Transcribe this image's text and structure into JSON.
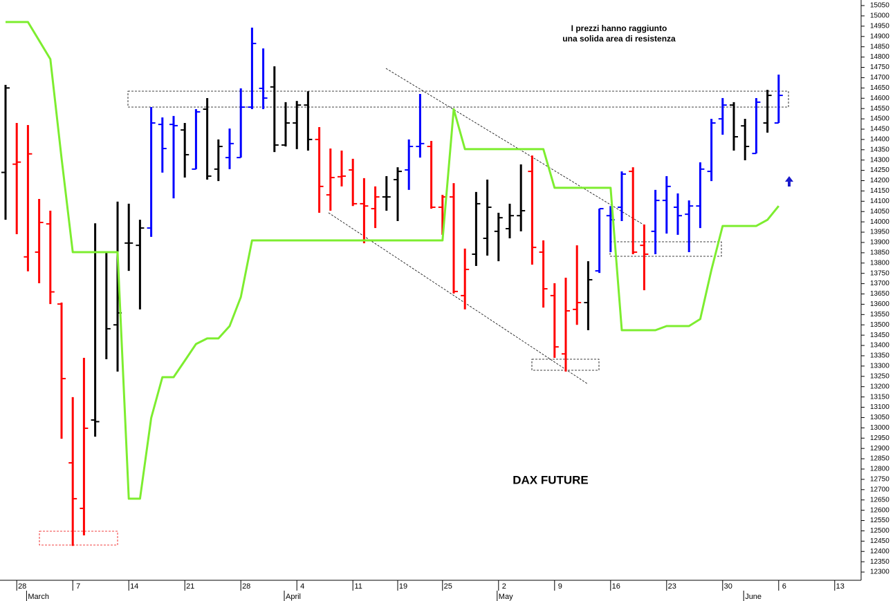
{
  "chart_data": {
    "type": "ohlc",
    "title": "DAX FUTURE",
    "annotation": [
      "I prezzi hanno raggiunto",
      "una solida area di resistenza"
    ],
    "categories": [
      null,
      "28",
      null,
      null,
      null,
      null,
      "7",
      null,
      null,
      null,
      null,
      "14",
      null,
      null,
      null,
      null,
      "21",
      null,
      null,
      null,
      null,
      "28",
      null,
      null,
      null,
      null,
      "4",
      null,
      null,
      null,
      null,
      "11",
      null,
      null,
      null,
      "19",
      null,
      null,
      null,
      "25",
      null,
      null,
      null,
      null,
      "2",
      null,
      null,
      null,
      null,
      "9",
      null,
      null,
      null,
      null,
      "16",
      null,
      null,
      null,
      null,
      "23",
      null,
      null,
      null,
      null,
      "30",
      null,
      null,
      null,
      null,
      "6",
      null,
      null,
      null,
      null,
      "13",
      null
    ],
    "months": [
      null,
      null,
      "March",
      null,
      null,
      null,
      null,
      null,
      null,
      null,
      null,
      null,
      null,
      null,
      null,
      null,
      null,
      null,
      null,
      null,
      null,
      null,
      null,
      null,
      null,
      "April",
      null,
      null,
      null,
      null,
      null,
      null,
      null,
      null,
      null,
      null,
      null,
      null,
      null,
      null,
      null,
      null,
      null,
      null,
      "May",
      null,
      null,
      null,
      null,
      null,
      null,
      null,
      null,
      null,
      null,
      null,
      null,
      null,
      null,
      null,
      null,
      null,
      null,
      null,
      null,
      null,
      "June",
      null,
      null,
      null,
      null,
      null,
      null,
      null,
      null,
      null
    ],
    "open": [
      14240,
      14280,
      13830,
      13853,
      13990,
      13601,
      12830,
      12609,
      13038,
      13853,
      13500,
      13897,
      13886,
      13970,
      14473,
      14473,
      14446,
      14256,
      14547,
      14256,
      14312,
      14312,
      14557,
      14648,
      14655,
      14373,
      14480,
      14567,
      14400,
      14131,
      14219,
      14252,
      14088,
      14064,
      14121,
      14205,
      14252,
      14366,
      14366,
      14071,
      14121,
      13642,
      13843,
      13920,
      13954,
      13967,
      14030,
      14245,
      13853,
      13642,
      13359,
      13575,
      13608,
      13762,
      14030,
      14071,
      14245,
      13886,
      13954,
      14104,
      14071,
      14037,
      14077,
      14245,
      14500,
      14567,
      14466,
      14332,
      14480,
      14480,
      null,
      null,
      null,
      null,
      null,
      null
    ],
    "high": [
      14665,
      14480,
      14470,
      14111,
      14054,
      13608,
      13149,
      13340,
      13993,
      13853,
      14098,
      14088,
      14010,
      14557,
      14507,
      14514,
      14480,
      14547,
      14601,
      14400,
      14453,
      14648,
      14943,
      14842,
      14755,
      14581,
      14587,
      14634,
      14460,
      14356,
      14346,
      14306,
      14212,
      14172,
      14222,
      14265,
      14400,
      14621,
      14393,
      14131,
      14188,
      13870,
      14145,
      14205,
      14044,
      14088,
      14279,
      14322,
      13910,
      13702,
      13729,
      13886,
      13809,
      14064,
      14077,
      14245,
      14265,
      13987,
      14155,
      14222,
      14138,
      14104,
      14289,
      14500,
      14601,
      14581,
      14500,
      14601,
      14641,
      14715,
      null,
      null,
      null,
      null,
      null,
      null
    ],
    "low": [
      14010,
      13940,
      13760,
      13702,
      13601,
      12947,
      12427,
      12478,
      12957,
      13333,
      13273,
      13762,
      13575,
      13927,
      14239,
      14114,
      14215,
      14256,
      14205,
      14198,
      14256,
      14312,
      14547,
      14547,
      14339,
      14366,
      14353,
      14346,
      14044,
      14054,
      14172,
      14077,
      13896,
      13970,
      14054,
      14004,
      14155,
      14312,
      14064,
      13937,
      13652,
      13575,
      13786,
      13836,
      13809,
      13920,
      13954,
      13792,
      13584,
      13340,
      13273,
      13500,
      13474,
      13752,
      13853,
      14004,
      13843,
      13668,
      13843,
      13943,
      13937,
      13853,
      13970,
      14198,
      14423,
      14346,
      14299,
      14332,
      14433,
      14480,
      null,
      null,
      null,
      null,
      null,
      null
    ],
    "close": [
      14650,
      14290,
      14330,
      13997,
      13660,
      13239,
      12656,
      12998,
      13030,
      13481,
      13558,
      13897,
      13970,
      14480,
      14356,
      14467,
      14326,
      14534,
      14222,
      14366,
      14380,
      14557,
      14866,
      14601,
      14373,
      14480,
      14567,
      14400,
      14172,
      14215,
      14222,
      14088,
      14077,
      14121,
      14121,
      14245,
      14366,
      14380,
      14071,
      14121,
      13662,
      13769,
      14088,
      14071,
      14020,
      14030,
      14054,
      13876,
      13675,
      13393,
      13568,
      13608,
      13719,
      14064,
      14010,
      14232,
      13853,
      13843,
      14104,
      14172,
      14030,
      14077,
      14256,
      14480,
      14567,
      14413,
      14366,
      14581,
      14614,
      14614,
      null,
      null,
      null,
      null,
      null,
      null
    ],
    "bar_colors": [
      "black",
      "red",
      "red",
      "red",
      "red",
      "red",
      "red",
      "red",
      "black",
      "black",
      "black",
      "black",
      "black",
      "blue",
      "blue",
      "blue",
      "black",
      "blue",
      "black",
      "black",
      "blue",
      "blue",
      "blue",
      "blue",
      "black",
      "black",
      "black",
      "black",
      "red",
      "red",
      "red",
      "red",
      "red",
      "red",
      "black",
      "black",
      "blue",
      "blue",
      "red",
      "red",
      "red",
      "red",
      "black",
      "black",
      "black",
      "black",
      "black",
      "red",
      "red",
      "red",
      "red",
      "red",
      "black",
      "blue",
      "blue",
      "blue",
      "red",
      "red",
      "blue",
      "blue",
      "blue",
      "blue",
      "blue",
      "blue",
      "blue",
      "black",
      "black",
      "blue",
      "black",
      "blue",
      null,
      null,
      null,
      null,
      null,
      null
    ],
    "line_color": "#7ded2f",
    "line_values": [
      14970,
      14970,
      14970,
      14880,
      14790,
      14309,
      13853,
      13853,
      13853,
      13853,
      13853,
      12656,
      12656,
      13048,
      13246,
      13246,
      13326,
      13407,
      13434,
      13434,
      13494,
      13635,
      13910,
      13910,
      13910,
      13910,
      13910,
      13910,
      13910,
      13910,
      13910,
      13910,
      13910,
      13910,
      13910,
      13910,
      13910,
      13910,
      13910,
      13910,
      14547,
      14353,
      14353,
      14353,
      14353,
      14353,
      14353,
      14353,
      14353,
      14165,
      14165,
      14165,
      14165,
      14165,
      14165,
      13474,
      13474,
      13474,
      13474,
      13494,
      13494,
      13494,
      13528,
      13767,
      13980,
      13980,
      13980,
      13980,
      14010,
      14077,
      null,
      null,
      null,
      null,
      null,
      null
    ],
    "ylim": [
      12260,
      15077
    ],
    "yticks": [
      12300,
      12350,
      12400,
      12450,
      12500,
      12550,
      12600,
      12650,
      12700,
      12750,
      12800,
      12850,
      12900,
      12950,
      13000,
      13050,
      13100,
      13150,
      13200,
      13250,
      13300,
      13350,
      13400,
      13450,
      13500,
      13550,
      13600,
      13650,
      13700,
      13750,
      13800,
      13850,
      13900,
      13950,
      14000,
      14050,
      14100,
      14150,
      14200,
      14250,
      14300,
      14350,
      14400,
      14450,
      14500,
      14550,
      14600,
      14650,
      14700,
      14750,
      14800,
      14850,
      14900,
      14950,
      15000,
      15050
    ]
  }
}
